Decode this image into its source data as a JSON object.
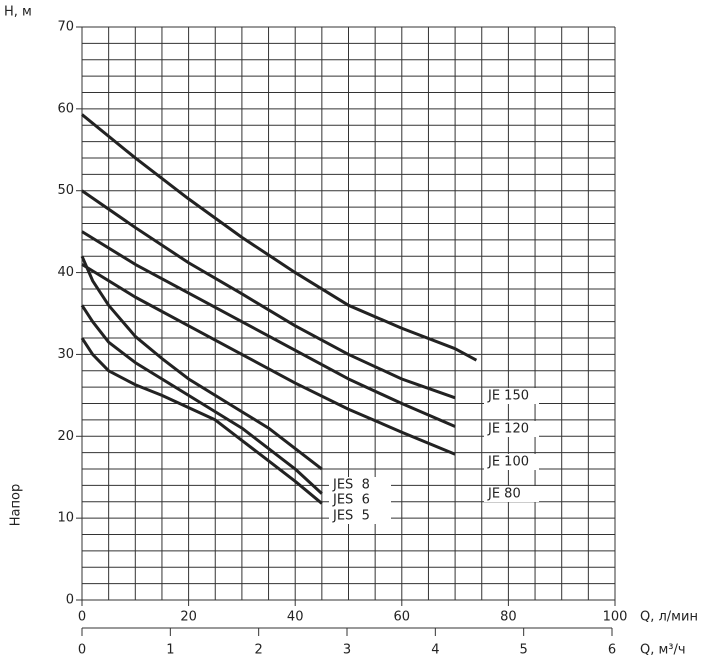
{
  "chart_data": {
    "type": "line",
    "y_label": "H, м",
    "y_axis_title": "Напор",
    "x_label": "Q, л/мин",
    "x2_label": "Q, м³/ч",
    "xlim": [
      0,
      100
    ],
    "xticks": [
      0,
      20,
      40,
      60,
      80,
      100
    ],
    "x2lim": [
      0,
      6
    ],
    "x2ticks": [
      0,
      1,
      2,
      3,
      4,
      5,
      6
    ],
    "ylim": [
      0,
      70
    ],
    "yticks": [
      0,
      10,
      20,
      30,
      40,
      50,
      60,
      70
    ],
    "xgrid": [
      0,
      5,
      10,
      15,
      20,
      25,
      30,
      35,
      40,
      45,
      50,
      55,
      60,
      65,
      70,
      75,
      80,
      85,
      90,
      95,
      100
    ],
    "ygrid": [
      0,
      2,
      4,
      6,
      8,
      10,
      12,
      14,
      16,
      18,
      20,
      22,
      24,
      26,
      28,
      30,
      32,
      34,
      36,
      38,
      40,
      42,
      44,
      46,
      48,
      50,
      52,
      54,
      56,
      58,
      60,
      62,
      64,
      66,
      68,
      70
    ],
    "grid": true,
    "series": [
      {
        "name": "JE 150",
        "color": "#222222",
        "x": [
          0,
          10,
          20,
          30,
          40,
          50,
          60,
          70,
          74
        ],
        "values": [
          59.3,
          54,
          49,
          44.3,
          40,
          36,
          33.2,
          30.7,
          29.3
        ]
      },
      {
        "name": "JE 120",
        "color": "#222222",
        "x": [
          0,
          10,
          20,
          30,
          40,
          50,
          60,
          70
        ],
        "values": [
          50,
          45.5,
          41.2,
          37.4,
          33.5,
          30,
          27,
          24.7
        ]
      },
      {
        "name": "JE 100",
        "color": "#222222",
        "x": [
          0,
          10,
          20,
          30,
          40,
          50,
          60,
          70
        ],
        "values": [
          45,
          41,
          37.5,
          34,
          30.5,
          27,
          24,
          21.2
        ]
      },
      {
        "name": "JE 80",
        "color": "#222222",
        "x": [
          0,
          10,
          20,
          30,
          40,
          50,
          60,
          70
        ],
        "values": [
          41,
          37,
          33.5,
          30,
          26.5,
          23.3,
          20.5,
          17.8
        ]
      },
      {
        "name": "JES  8",
        "color": "#222222",
        "x": [
          0,
          2,
          5,
          10,
          15,
          20,
          25,
          30,
          35,
          40,
          45
        ],
        "values": [
          42,
          39,
          36,
          32.2,
          29.5,
          27,
          25,
          23,
          21,
          18.5,
          16
        ]
      },
      {
        "name": "JES  6",
        "color": "#222222",
        "x": [
          0,
          2,
          5,
          10,
          15,
          20,
          25,
          30,
          35,
          40,
          45
        ],
        "values": [
          36,
          34,
          31.5,
          29,
          27,
          25,
          23,
          21,
          18.5,
          16,
          13
        ]
      },
      {
        "name": "JES  5",
        "color": "#222222",
        "x": [
          0,
          2,
          5,
          10,
          15,
          20,
          25,
          30,
          35,
          40,
          45
        ],
        "values": [
          32,
          30,
          28,
          26.3,
          25,
          23.5,
          22,
          19.5,
          17,
          14.5,
          11.8
        ]
      }
    ]
  }
}
